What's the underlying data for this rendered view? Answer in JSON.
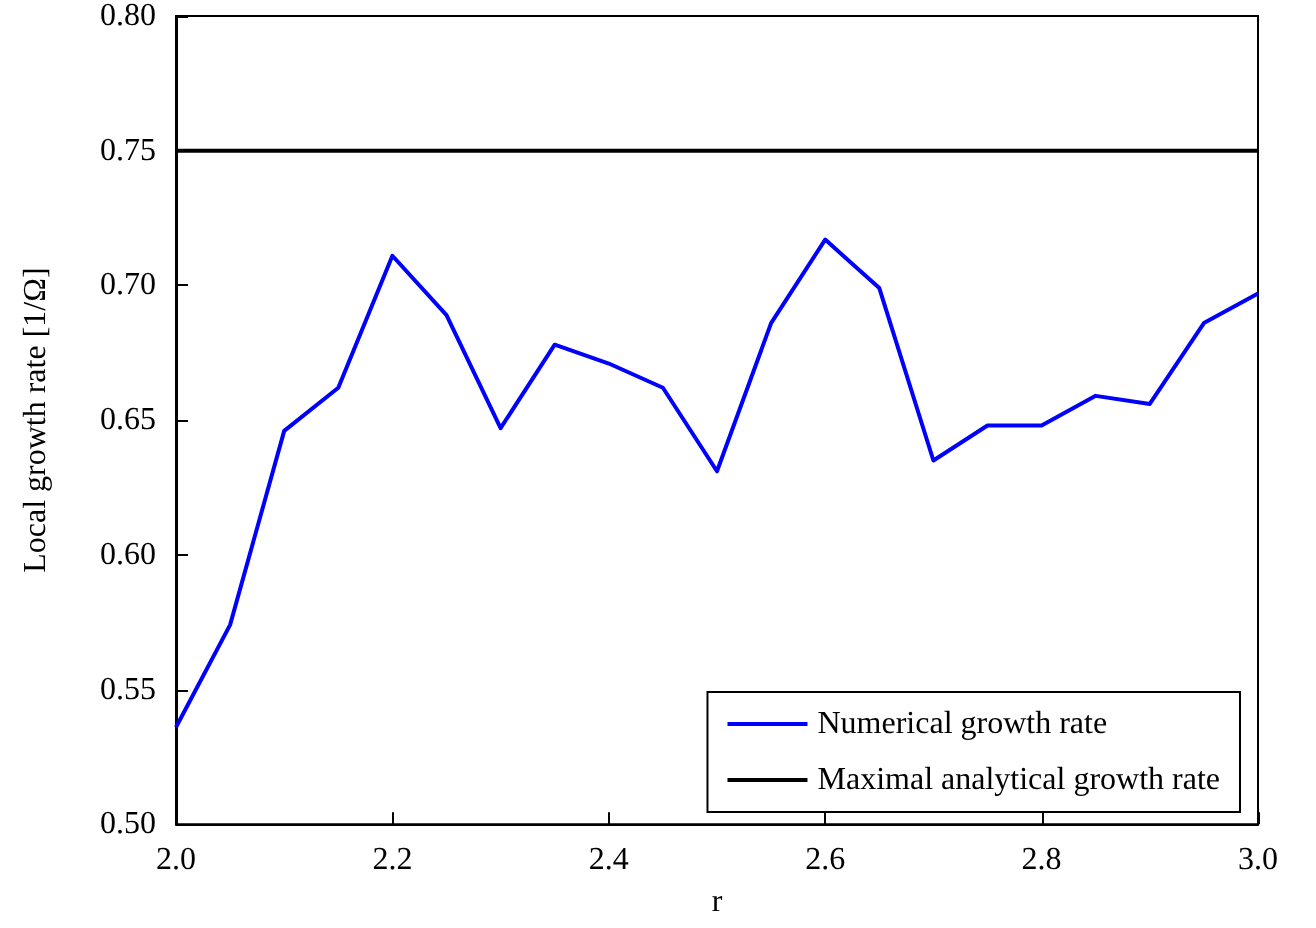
{
  "chart_data": {
    "type": "line",
    "xlabel": "r",
    "ylabel": "Local growth rate [1/Ω]",
    "x": [
      2.0,
      2.05,
      2.1,
      2.15,
      2.2,
      2.25,
      2.3,
      2.35,
      2.4,
      2.45,
      2.5,
      2.55,
      2.6,
      2.65,
      2.7,
      2.75,
      2.8,
      2.85,
      2.9,
      2.95,
      3.0
    ],
    "series": [
      {
        "name": "Numerical growth rate",
        "color": "#0000ff",
        "values": [
          0.536,
          0.574,
          0.646,
          0.662,
          0.711,
          0.689,
          0.647,
          0.678,
          0.671,
          0.662,
          0.631,
          0.686,
          0.717,
          0.699,
          0.635,
          0.648,
          0.648,
          0.659,
          0.656,
          0.686,
          0.697
        ]
      },
      {
        "name": "Maximal analytical growth rate",
        "color": "#000000",
        "x": [
          2.0,
          3.0
        ],
        "values": [
          0.75,
          0.75
        ]
      }
    ],
    "xlim": [
      2.0,
      3.0
    ],
    "xticks": [
      {
        "value": 2,
        "label": "2.0"
      },
      {
        "value": 2.2,
        "label": "2.2"
      },
      {
        "value": 2.4,
        "label": "2.4"
      },
      {
        "value": 2.6,
        "label": "2.6"
      },
      {
        "value": 2.8,
        "label": "2.8"
      },
      {
        "value": 3,
        "label": "3.0"
      }
    ],
    "ylim": [
      0.5,
      0.8
    ],
    "yticks": [
      {
        "value": 0.5,
        "label": "0.50"
      },
      {
        "value": 0.55,
        "label": "0.55"
      },
      {
        "value": 0.6,
        "label": "0.60"
      },
      {
        "value": 0.65,
        "label": "0.65"
      },
      {
        "value": 0.7,
        "label": "0.70"
      },
      {
        "value": 0.75,
        "label": "0.75"
      },
      {
        "value": 0.8,
        "label": "0.80"
      }
    ],
    "grid": false,
    "legend": "bottom right",
    "marker": "none",
    "line_style": "solid"
  }
}
